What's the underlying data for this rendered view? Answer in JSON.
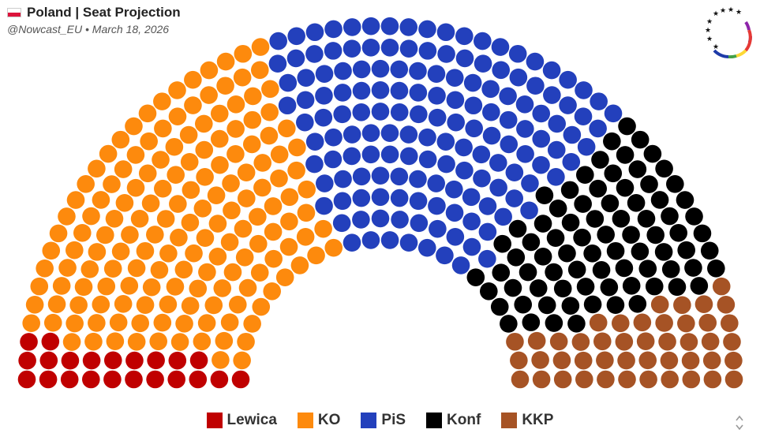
{
  "header": {
    "title": "Poland | Seat Projection",
    "subtitle": "@Nowcast_EU • March 18, 2026",
    "flag_colors": [
      "#ffffff",
      "#dc143c"
    ]
  },
  "logo": {
    "icon": "eu-stars-ring-icon"
  },
  "chart_data": {
    "type": "hemicycle",
    "total_seats": 460,
    "series": [
      {
        "name": "Lewica",
        "seats": 22,
        "color": "#c00000"
      },
      {
        "name": "KO",
        "seats": 161,
        "color": "#fd8a0d"
      },
      {
        "name": "PiS",
        "seats": 152,
        "color": "#2340bc"
      },
      {
        "name": "Konf",
        "seats": 80,
        "color": "#000000"
      },
      {
        "name": "KKP",
        "seats": 45,
        "color": "#a65325"
      }
    ],
    "legend_position": "bottom"
  }
}
